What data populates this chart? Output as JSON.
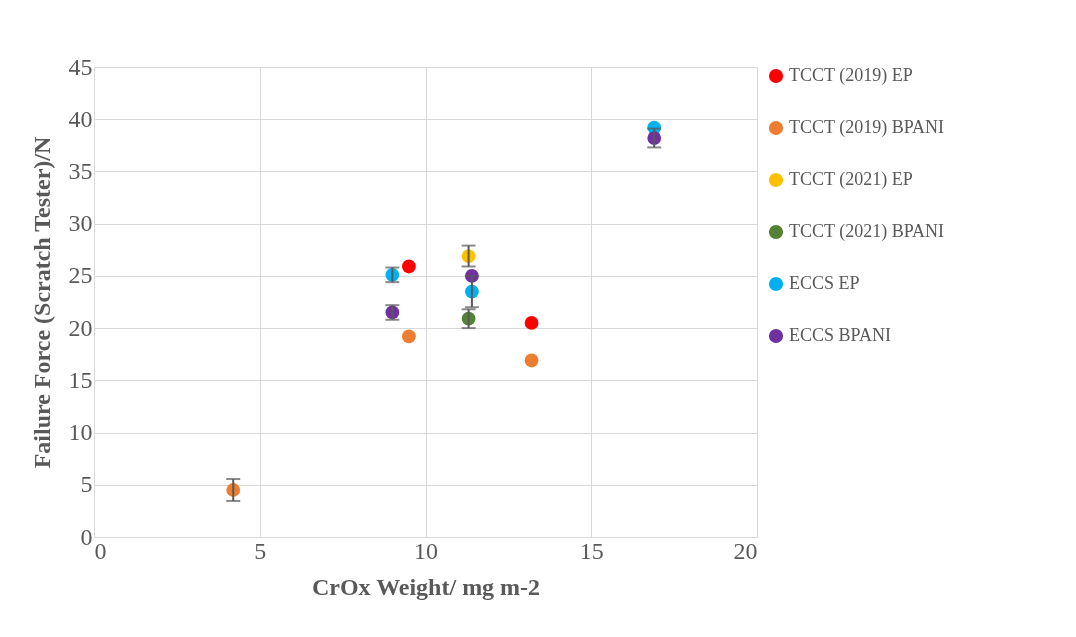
{
  "chart_data": {
    "type": "scatter",
    "xlabel": "CrOx Weight/ mg m-2",
    "ylabel": "Failure Force (Scratch Tester)/N",
    "xlim": [
      0,
      20
    ],
    "xticks": [
      0,
      5,
      10,
      15,
      20
    ],
    "ylim": [
      0,
      45
    ],
    "yticks": [
      0,
      5,
      10,
      15,
      20,
      25,
      30,
      35,
      40,
      45
    ],
    "grid": true,
    "legend": "right",
    "marker": "circle",
    "series": [
      {
        "name": "TCCT (2019) EP",
        "color": "#ff0000",
        "x": [
          9.5,
          13.2
        ],
        "values": [
          25.9,
          20.5
        ]
      },
      {
        "name": "TCCT (2019) BPANI",
        "color": "#ed7d31",
        "x": [
          4.2,
          9.5,
          13.2
        ],
        "values": [
          4.5,
          19.2,
          16.9
        ],
        "errors": [
          1.05,
          null,
          null
        ]
      },
      {
        "name": "TCCT (2021) EP",
        "color": "#ffc000",
        "x": [
          11.3
        ],
        "values": [
          26.9
        ],
        "errors": [
          1.0
        ]
      },
      {
        "name": "TCCT (2021) BPANI",
        "color": "#548235",
        "x": [
          11.3
        ],
        "values": [
          20.9
        ],
        "errors": [
          0.9
        ]
      },
      {
        "name": "ECCS EP",
        "color": "#00b0f0",
        "x": [
          9.0,
          11.4,
          16.9
        ],
        "values": [
          25.1,
          23.5,
          39.2
        ],
        "errors": [
          0.7,
          1.5,
          null
        ]
      },
      {
        "name": "ECCS BPANI",
        "color": "#7030a0",
        "x": [
          9.0,
          11.4,
          16.9
        ],
        "values": [
          21.5,
          25.0,
          38.2
        ],
        "errors": [
          0.7,
          null,
          0.9
        ]
      }
    ]
  }
}
